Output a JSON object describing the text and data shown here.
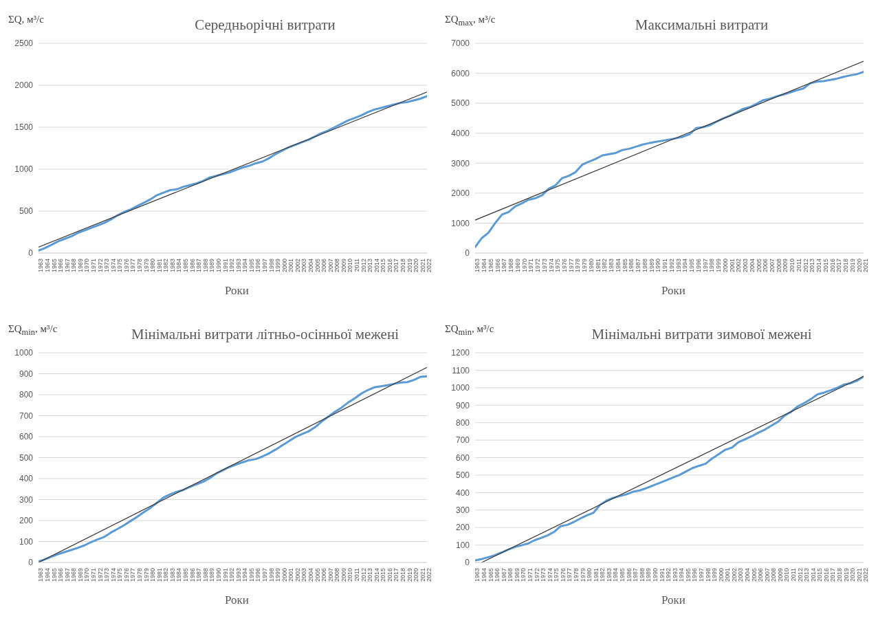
{
  "chart_data": [
    {
      "type": "line",
      "title": "Середньорічні витрати",
      "ylabel": "ΣQ, м³/с",
      "xlabel": "Роки",
      "grid": "y",
      "ylim": [
        0,
        2500
      ],
      "yticks": [
        0,
        500,
        1000,
        1500,
        2000,
        2500
      ],
      "xlim": [
        1963,
        2022
      ],
      "xticks": [
        1963,
        1964,
        1965,
        1966,
        1967,
        1968,
        1969,
        1970,
        1971,
        1972,
        1973,
        1974,
        1975,
        1976,
        1977,
        1978,
        1979,
        1980,
        1981,
        1982,
        1983,
        1984,
        1985,
        1986,
        1987,
        1988,
        1989,
        1990,
        1991,
        1992,
        1993,
        1994,
        1995,
        1996,
        1997,
        1998,
        1999,
        2000,
        2001,
        2002,
        2003,
        2004,
        2005,
        2006,
        2007,
        2008,
        2009,
        2010,
        2011,
        2012,
        2013,
        2014,
        2015,
        2016,
        2017,
        2018,
        2019,
        2020,
        2021,
        2022
      ],
      "x": [
        1963,
        1964,
        1965,
        1966,
        1967,
        1968,
        1969,
        1970,
        1971,
        1972,
        1973,
        1974,
        1975,
        1976,
        1977,
        1978,
        1979,
        1980,
        1981,
        1982,
        1983,
        1984,
        1985,
        1986,
        1987,
        1988,
        1989,
        1990,
        1991,
        1992,
        1993,
        1994,
        1995,
        1996,
        1997,
        1998,
        1999,
        2000,
        2001,
        2002,
        2003,
        2004,
        2005,
        2006,
        2007,
        2008,
        2009,
        2010,
        2011,
        2012,
        2013,
        2014,
        2015,
        2016,
        2017,
        2018,
        2019,
        2020,
        2021,
        2022
      ],
      "series": [
        {
          "color": "#5b9bd5",
          "values": [
            30,
            60,
            100,
            140,
            170,
            200,
            240,
            270,
            300,
            330,
            360,
            400,
            450,
            490,
            520,
            560,
            600,
            640,
            690,
            720,
            750,
            760,
            790,
            810,
            830,
            860,
            900,
            920,
            940,
            960,
            990,
            1020,
            1040,
            1070,
            1090,
            1130,
            1180,
            1220,
            1260,
            1290,
            1320,
            1350,
            1390,
            1430,
            1460,
            1500,
            1540,
            1580,
            1610,
            1640,
            1680,
            1710,
            1730,
            1750,
            1770,
            1790,
            1800,
            1820,
            1840,
            1870
          ]
        },
        {
          "type": "line",
          "color": "#404040",
          "x": [
            1963,
            2022
          ],
          "values": [
            70,
            1920
          ]
        }
      ]
    },
    {
      "type": "line",
      "title": "Максимальні витрати",
      "ylabel": "ΣQ$_{max}$, м³/с",
      "xlabel": "Роки",
      "grid": "y",
      "ylim": [
        0,
        7000
      ],
      "yticks": [
        0,
        1000,
        2000,
        3000,
        4000,
        5000,
        6000,
        7000
      ],
      "xlim": [
        1963,
        2021
      ],
      "xticks": [
        1963,
        1964,
        1965,
        1966,
        1967,
        1968,
        1969,
        1970,
        1971,
        1972,
        1973,
        1974,
        1975,
        1976,
        1977,
        1978,
        1979,
        1980,
        1981,
        1982,
        1983,
        1984,
        1985,
        1986,
        1987,
        1988,
        1989,
        1990,
        1991,
        1992,
        1993,
        1994,
        1995,
        1996,
        1997,
        1998,
        1999,
        2000,
        2001,
        2002,
        2003,
        2004,
        2005,
        2006,
        2007,
        2008,
        2009,
        2010,
        2011,
        2012,
        2013,
        2014,
        2015,
        2016,
        2017,
        2018,
        2019,
        2020,
        2021
      ],
      "x": [
        1963,
        1964,
        1965,
        1966,
        1967,
        1968,
        1969,
        1970,
        1971,
        1972,
        1973,
        1974,
        1975,
        1976,
        1977,
        1978,
        1979,
        1980,
        1981,
        1982,
        1983,
        1984,
        1985,
        1986,
        1987,
        1988,
        1989,
        1990,
        1991,
        1992,
        1993,
        1994,
        1995,
        1996,
        1997,
        1998,
        1999,
        2000,
        2001,
        2002,
        2003,
        2004,
        2005,
        2006,
        2007,
        2008,
        2009,
        2010,
        2011,
        2012,
        2013,
        2014,
        2015,
        2016,
        2017,
        2018,
        2019,
        2020,
        2021
      ],
      "series": [
        {
          "color": "#5b9bd5",
          "values": [
            200,
            500,
            680,
            1000,
            1280,
            1370,
            1560,
            1660,
            1780,
            1830,
            1930,
            2150,
            2260,
            2500,
            2580,
            2700,
            2950,
            3050,
            3140,
            3260,
            3300,
            3340,
            3440,
            3480,
            3550,
            3620,
            3670,
            3710,
            3750,
            3790,
            3830,
            3880,
            3960,
            4170,
            4200,
            4260,
            4380,
            4490,
            4580,
            4690,
            4810,
            4870,
            4980,
            5100,
            5150,
            5230,
            5290,
            5360,
            5430,
            5490,
            5660,
            5720,
            5740,
            5780,
            5820,
            5880,
            5930,
            5970,
            6050
          ]
        },
        {
          "type": "line",
          "color": "#404040",
          "x": [
            1963,
            2021
          ],
          "values": [
            1100,
            6400
          ]
        }
      ]
    },
    {
      "type": "line",
      "title": "Мінімальні витрати літньо-осінньої межені",
      "ylabel": "ΣQ$_{min}$, м³/с",
      "xlabel": "Роки",
      "grid": "y",
      "ylim": [
        0,
        1000
      ],
      "yticks": [
        0,
        100,
        200,
        300,
        400,
        500,
        600,
        700,
        800,
        900,
        1000
      ],
      "xlim": [
        1963,
        2022
      ],
      "xticks": [
        1963,
        1964,
        1965,
        1966,
        1967,
        1968,
        1969,
        1970,
        1971,
        1972,
        1973,
        1974,
        1975,
        1976,
        1977,
        1978,
        1979,
        1980,
        1981,
        1982,
        1983,
        1984,
        1985,
        1986,
        1987,
        1988,
        1989,
        1990,
        1991,
        1992,
        1993,
        1994,
        1995,
        1996,
        1997,
        1998,
        1999,
        2000,
        2001,
        2002,
        2003,
        2004,
        2005,
        2006,
        2007,
        2008,
        2009,
        2010,
        2011,
        2012,
        2013,
        2014,
        2015,
        2016,
        2017,
        2018,
        2019,
        2020,
        2021,
        2022
      ],
      "x": [
        1963,
        1964,
        1965,
        1966,
        1967,
        1968,
        1969,
        1970,
        1971,
        1972,
        1973,
        1974,
        1975,
        1976,
        1977,
        1978,
        1979,
        1980,
        1981,
        1982,
        1983,
        1984,
        1985,
        1986,
        1987,
        1988,
        1989,
        1990,
        1991,
        1992,
        1993,
        1994,
        1995,
        1996,
        1997,
        1998,
        1999,
        2000,
        2001,
        2002,
        2003,
        2004,
        2005,
        2006,
        2007,
        2008,
        2009,
        2010,
        2011,
        2012,
        2013,
        2014,
        2015,
        2016,
        2017,
        2018,
        2019,
        2020,
        2021,
        2022
      ],
      "series": [
        {
          "color": "#5b9bd5",
          "values": [
            5,
            15,
            28,
            40,
            50,
            60,
            70,
            82,
            97,
            110,
            122,
            143,
            160,
            178,
            198,
            218,
            240,
            260,
            285,
            310,
            325,
            337,
            346,
            360,
            373,
            385,
            402,
            424,
            440,
            455,
            467,
            478,
            488,
            493,
            505,
            520,
            538,
            558,
            578,
            598,
            612,
            625,
            645,
            672,
            695,
            718,
            738,
            762,
            782,
            805,
            822,
            835,
            840,
            845,
            852,
            858,
            860,
            870,
            885,
            888
          ]
        },
        {
          "type": "line",
          "color": "#404040",
          "x": [
            1963,
            2022
          ],
          "values": [
            0,
            930
          ]
        }
      ]
    },
    {
      "type": "line",
      "title": "Мінімальні витрати зимової межені",
      "ylabel": "ΣQ$_{min}$, м³/с",
      "xlabel": "Роки",
      "grid": "y",
      "ylim": [
        0,
        1200
      ],
      "yticks": [
        0,
        100,
        200,
        300,
        400,
        500,
        600,
        700,
        800,
        900,
        1000,
        1100,
        1200
      ],
      "xlim": [
        1963,
        2022
      ],
      "xticks": [
        1963,
        1964,
        1965,
        1966,
        1967,
        1968,
        1969,
        1970,
        1971,
        1972,
        1973,
        1974,
        1975,
        1976,
        1977,
        1978,
        1979,
        1980,
        1981,
        1982,
        1983,
        1984,
        1985,
        1986,
        1987,
        1988,
        1989,
        1990,
        1991,
        1992,
        1993,
        1994,
        1995,
        1996,
        1997,
        1998,
        1999,
        2000,
        2001,
        2002,
        2003,
        2004,
        2005,
        2006,
        2007,
        2008,
        2009,
        2010,
        2011,
        2012,
        2013,
        2014,
        2015,
        2016,
        2017,
        2018,
        2019,
        2020,
        2021,
        2022
      ],
      "x": [
        1963,
        1964,
        1965,
        1966,
        1967,
        1968,
        1969,
        1970,
        1971,
        1972,
        1973,
        1974,
        1975,
        1976,
        1977,
        1978,
        1979,
        1980,
        1981,
        1982,
        1983,
        1984,
        1985,
        1986,
        1987,
        1988,
        1989,
        1990,
        1991,
        1992,
        1993,
        1994,
        1995,
        1996,
        1997,
        1998,
        1999,
        2000,
        2001,
        2002,
        2003,
        2004,
        2005,
        2006,
        2007,
        2008,
        2009,
        2010,
        2011,
        2012,
        2013,
        2014,
        2015,
        2016,
        2017,
        2018,
        2019,
        2020,
        2021,
        2022
      ],
      "series": [
        {
          "color": "#5b9bd5",
          "values": [
            12,
            20,
            30,
            42,
            57,
            73,
            88,
            98,
            108,
            127,
            140,
            155,
            175,
            208,
            215,
            232,
            252,
            270,
            285,
            330,
            355,
            370,
            380,
            390,
            405,
            412,
            425,
            440,
            455,
            470,
            485,
            500,
            520,
            540,
            553,
            565,
            595,
            620,
            645,
            657,
            688,
            705,
            722,
            742,
            760,
            783,
            805,
            840,
            862,
            893,
            912,
            935,
            962,
            972,
            985,
            1000,
            1018,
            1025,
            1040,
            1063
          ]
        },
        {
          "type": "line",
          "color": "#404040",
          "x": [
            1964,
            2022
          ],
          "values": [
            0,
            1065
          ]
        }
      ]
    }
  ]
}
